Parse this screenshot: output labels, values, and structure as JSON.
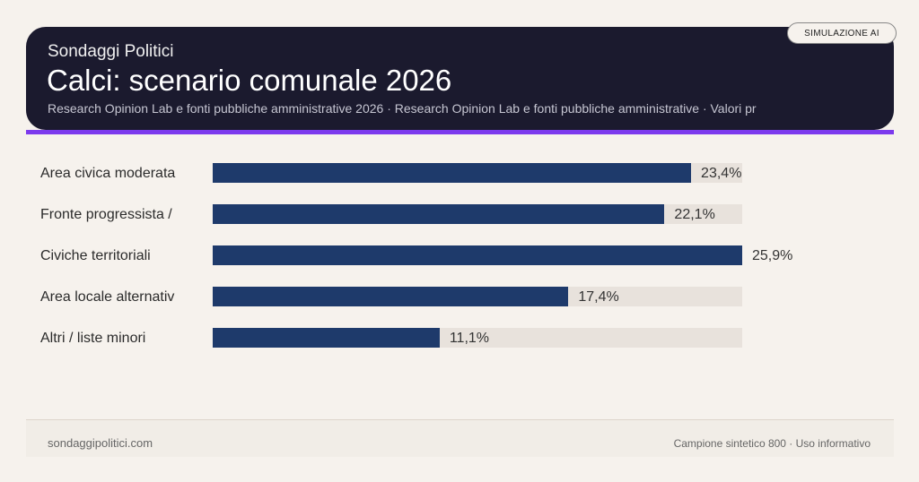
{
  "header": {
    "kicker": "Sondaggi Politici",
    "title": "Calci: scenario comunale 2026",
    "subtitle": "Research Opinion Lab e fonti pubbliche amministrative 2026 · Research Opinion Lab e fonti pubbliche amministrative · Valori pr",
    "badge": "SIMULAZIONE AI"
  },
  "colors": {
    "bar": "#1e3a6b",
    "track": "#e8e2dc",
    "accent": "#7c3aed",
    "header_bg": "#1b1a2e"
  },
  "chart_data": {
    "type": "bar",
    "orientation": "horizontal",
    "categories": [
      "Area civica moderata",
      "Fronte progressista /",
      "Civiche territoriali",
      "Area locale alternativ",
      "Altri / liste minori"
    ],
    "values": [
      23.4,
      22.1,
      25.9,
      17.4,
      11.1
    ],
    "labels": [
      "23,4%",
      "22,1%",
      "25,9%",
      "17,4%",
      "11,1%"
    ],
    "unit": "%",
    "grid": false
  },
  "footer": {
    "site": "sondaggipolitici.com",
    "note": "Campione sintetico 800 · Uso informativo"
  }
}
